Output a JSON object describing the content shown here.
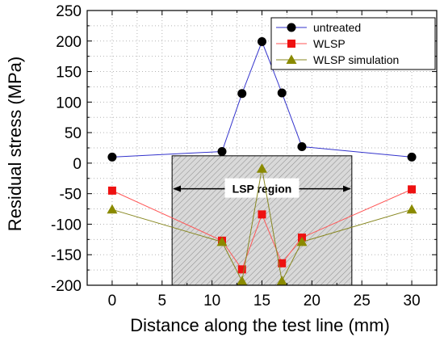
{
  "chart_data": {
    "type": "line",
    "xlabel": "Distance along the test line (mm)",
    "ylabel": "Residual stress (MPa)",
    "xlim": [
      -2.5,
      32.5
    ],
    "ylim": [
      -200,
      250
    ],
    "xticks": [
      0,
      5,
      10,
      15,
      20,
      25,
      30
    ],
    "yticks": [
      -200,
      -150,
      -100,
      -50,
      0,
      50,
      100,
      150,
      200,
      250
    ],
    "grid": true,
    "legend_position": "top-right",
    "series": [
      {
        "name": "untreated",
        "color": "#3333cc",
        "marker": "circle",
        "marker_color": "#000000",
        "x": [
          0,
          11,
          13,
          15,
          17,
          19,
          30
        ],
        "y": [
          10,
          19,
          114,
          199,
          115,
          27,
          10
        ]
      },
      {
        "name": "WLSP",
        "color": "#ff5555",
        "marker": "square",
        "marker_color": "#ee1111",
        "x": [
          0,
          11,
          13,
          15,
          17,
          19,
          30
        ],
        "y": [
          -45,
          -127,
          -174,
          -84,
          -164,
          -122,
          -43
        ]
      },
      {
        "name": "WLSP simulation",
        "color": "#888822",
        "marker": "triangle",
        "marker_color": "#8a8a00",
        "x": [
          0,
          11,
          13,
          15,
          17,
          19,
          30
        ],
        "y": [
          -76,
          -129,
          -193,
          -9,
          -193,
          -129,
          -76
        ]
      }
    ],
    "annotations": [
      {
        "type": "shaded-region",
        "label": "LSP region",
        "x": [
          6,
          24
        ],
        "y": [
          -200,
          12
        ]
      }
    ]
  }
}
